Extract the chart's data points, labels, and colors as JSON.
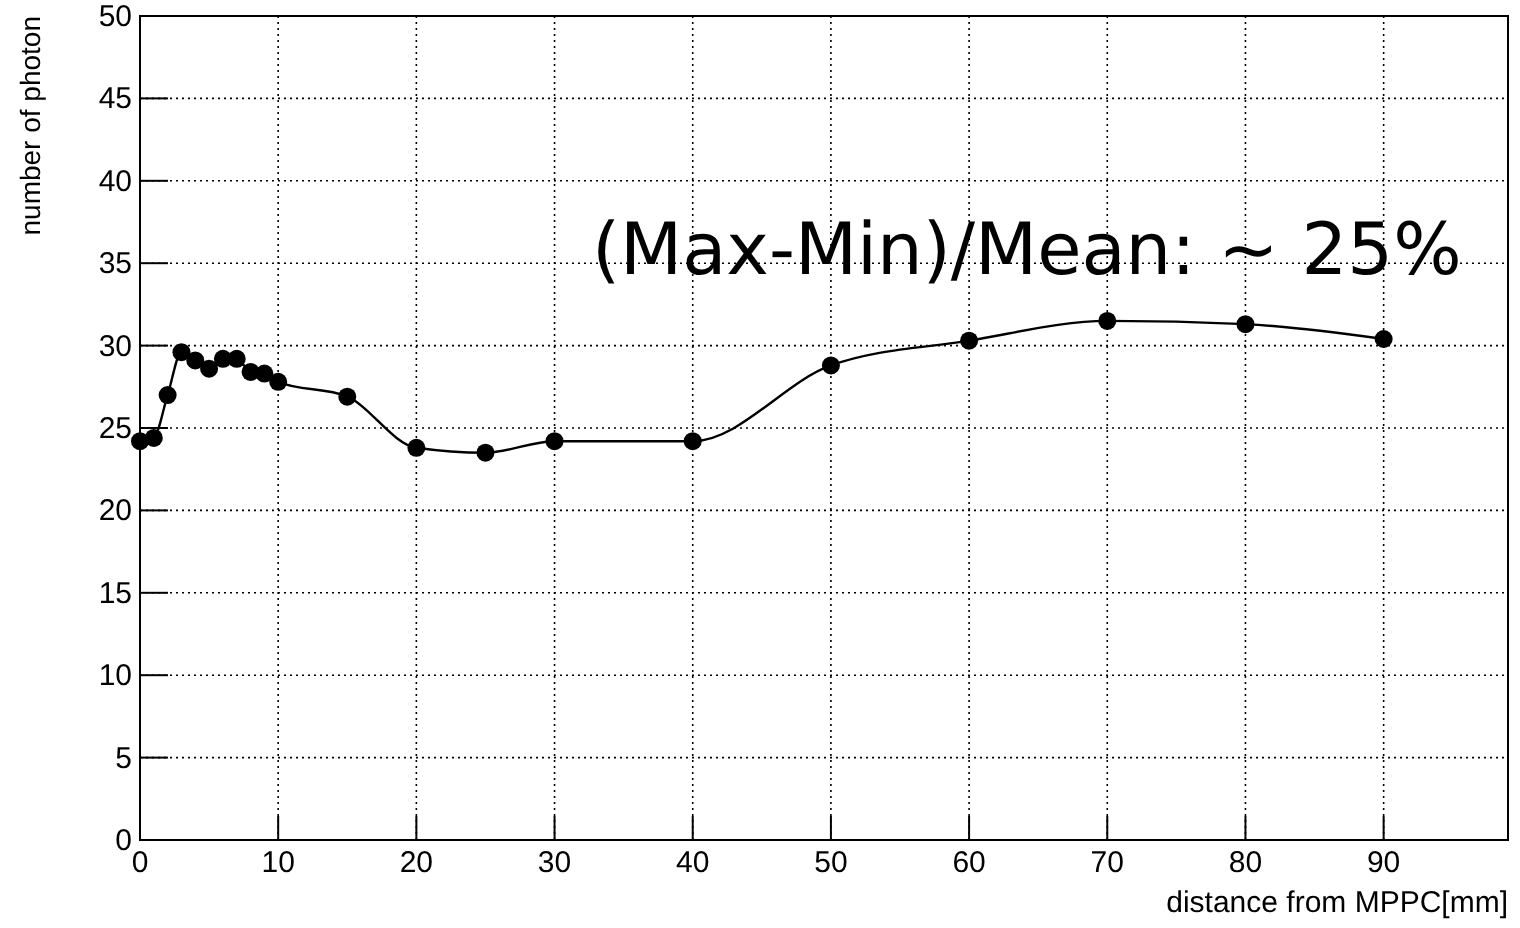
{
  "chart_data": {
    "type": "line",
    "xlabel": "distance from MPPC[mm]",
    "ylabel": "number of photon",
    "annotations": [
      "(Max-Min)/Mean: ~ 25%"
    ],
    "x": [
      0,
      1,
      2,
      3,
      4,
      5,
      6,
      7,
      8,
      9,
      10,
      15,
      20,
      25,
      30,
      40,
      50,
      60,
      70,
      80,
      90
    ],
    "series": [
      {
        "color": "#000000",
        "values": [
          24.2,
          24.4,
          27.0,
          29.6,
          29.1,
          28.6,
          29.2,
          29.2,
          28.4,
          28.3,
          27.8,
          26.9,
          23.8,
          23.5,
          24.2,
          24.2,
          28.8,
          30.3,
          31.5,
          31.3,
          30.4
        ]
      }
    ],
    "xlim": [
      0,
      99
    ],
    "ylim": [
      0,
      50
    ],
    "xticks": [
      0,
      10,
      20,
      30,
      40,
      50,
      60,
      70,
      80,
      90
    ],
    "yticks": [
      0,
      5,
      10,
      15,
      20,
      25,
      30,
      35,
      40,
      45,
      50
    ],
    "grid": true,
    "marker": "circle",
    "line_style": "solid"
  }
}
